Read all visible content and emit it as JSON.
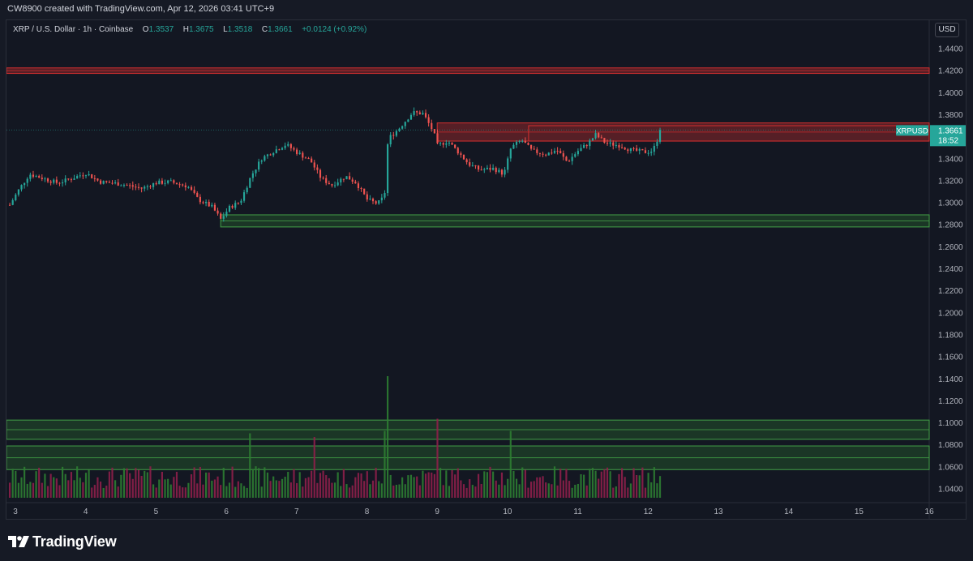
{
  "header": {
    "creator_text": "CW8900 created with TradingView.com, Apr 12, 2026 03:41 UTC+9"
  },
  "legend": {
    "symbol": "XRP / U.S. Dollar · 1h · Coinbase",
    "o_label": "O",
    "o_value": "1.3537",
    "h_label": "H",
    "h_value": "1.3675",
    "l_label": "L",
    "l_value": "1.3518",
    "c_label": "C",
    "c_value": "1.3661",
    "change": "+0.0124 (+0.92%)"
  },
  "currency_button": "USD",
  "footer": {
    "brand": "TradingView"
  },
  "colors": {
    "up": "#26a69a",
    "down": "#ef5350",
    "vol_up": "#2e7d32",
    "vol_down": "#8e1f4a",
    "resistance_zone": "#d32f2f",
    "support_zone": "#2e7d32",
    "last_price": "#26a69a"
  },
  "chart_data": {
    "type": "candlestick",
    "symbol": "XRPUSD",
    "timeframe": "1h",
    "ylim": [
      1.03,
      1.455
    ],
    "y_ticks": [
      "1.4400",
      "1.4200",
      "1.4000",
      "1.3800",
      "1.3600",
      "1.3400",
      "1.3200",
      "1.3000",
      "1.2800",
      "1.2600",
      "1.2400",
      "1.2200",
      "1.2000",
      "1.1800",
      "1.1600",
      "1.1400",
      "1.1200",
      "1.1000",
      "1.0800",
      "1.0600",
      "1.0400"
    ],
    "x_ticks": [
      "3",
      "4",
      "5",
      "6",
      "7",
      "8",
      "9",
      "10",
      "11",
      "12",
      "13",
      "14",
      "15",
      "16"
    ],
    "x_range_days": [
      2.92,
      16.0
    ],
    "last_price": {
      "label": "XRPUSD",
      "value": "1.3661",
      "countdown": "18:52",
      "price": 1.3661
    },
    "resistance_zones": [
      {
        "y1": 1.4225,
        "y2": 1.4175
      },
      {
        "y1": 1.3725,
        "y2": 1.356
      }
    ],
    "support_zones": [
      {
        "y1": 1.289,
        "y2": 1.278
      },
      {
        "y1": 1.1025,
        "y2": 1.085
      },
      {
        "y1": 1.079,
        "y2": 1.0575
      }
    ],
    "price_path": [
      [
        2.92,
        1.298
      ],
      [
        3.05,
        1.312
      ],
      [
        3.2,
        1.326
      ],
      [
        3.4,
        1.322
      ],
      [
        3.6,
        1.318
      ],
      [
        3.8,
        1.322
      ],
      [
        4.0,
        1.327
      ],
      [
        4.2,
        1.319
      ],
      [
        4.5,
        1.317
      ],
      [
        4.8,
        1.313
      ],
      [
        5.0,
        1.318
      ],
      [
        5.2,
        1.319
      ],
      [
        5.45,
        1.315
      ],
      [
        5.6,
        1.303
      ],
      [
        5.8,
        1.296
      ],
      [
        5.92,
        1.285
      ],
      [
        6.05,
        1.296
      ],
      [
        6.2,
        1.301
      ],
      [
        6.35,
        1.324
      ],
      [
        6.5,
        1.34
      ],
      [
        6.7,
        1.348
      ],
      [
        6.85,
        1.353
      ],
      [
        7.0,
        1.346
      ],
      [
        7.2,
        1.338
      ],
      [
        7.35,
        1.322
      ],
      [
        7.5,
        1.316
      ],
      [
        7.7,
        1.324
      ],
      [
        7.85,
        1.318
      ],
      [
        8.0,
        1.303
      ],
      [
        8.15,
        1.299
      ],
      [
        8.25,
        1.306
      ],
      [
        8.3,
        1.358
      ],
      [
        8.45,
        1.367
      ],
      [
        8.65,
        1.382
      ],
      [
        8.8,
        1.381
      ],
      [
        8.95,
        1.364
      ],
      [
        9.0,
        1.352
      ],
      [
        9.15,
        1.356
      ],
      [
        9.3,
        1.346
      ],
      [
        9.45,
        1.335
      ],
      [
        9.6,
        1.33
      ],
      [
        9.8,
        1.331
      ],
      [
        9.95,
        1.326
      ],
      [
        10.05,
        1.35
      ],
      [
        10.2,
        1.357
      ],
      [
        10.35,
        1.347
      ],
      [
        10.55,
        1.344
      ],
      [
        10.7,
        1.348
      ],
      [
        10.85,
        1.337
      ],
      [
        11.0,
        1.347
      ],
      [
        11.15,
        1.354
      ],
      [
        11.25,
        1.362
      ],
      [
        11.4,
        1.354
      ],
      [
        11.6,
        1.352
      ],
      [
        11.75,
        1.348
      ],
      [
        11.95,
        1.346
      ],
      [
        12.05,
        1.347
      ],
      [
        12.12,
        1.3535
      ],
      [
        12.15,
        1.3661
      ]
    ],
    "volume_spikes": [
      {
        "day": 8.3,
        "value": 1.0
      },
      {
        "day": 8.25,
        "value": 0.55
      },
      {
        "day": 9.0,
        "value": 0.65
      },
      {
        "day": 10.05,
        "value": 0.55
      },
      {
        "day": 6.35,
        "value": 0.53
      },
      {
        "day": 7.25,
        "value": 0.5
      }
    ]
  }
}
